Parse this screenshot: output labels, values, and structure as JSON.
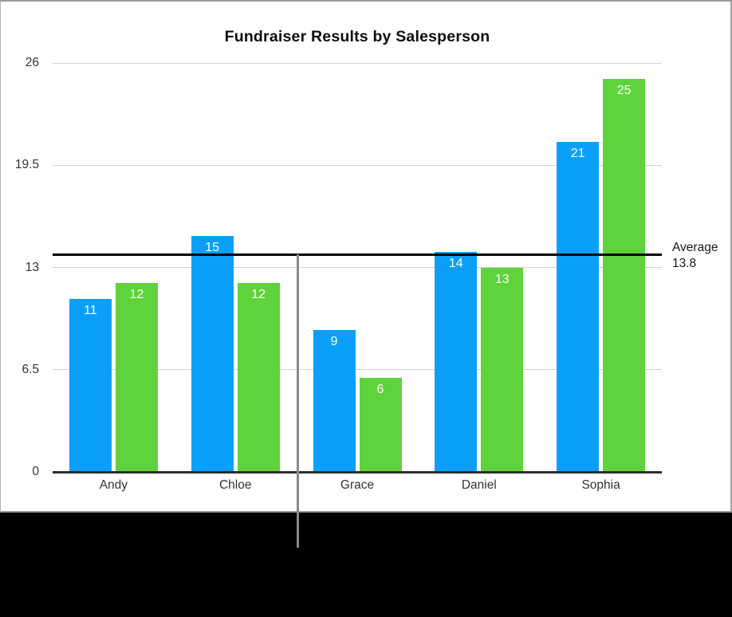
{
  "chart_data": {
    "type": "bar",
    "title": "Fundraiser Results by Salesperson",
    "categories": [
      "Andy",
      "Chloe",
      "Grace",
      "Daniel",
      "Sophia"
    ],
    "series": [
      {
        "key": "blue",
        "color": "#0AA0FA",
        "values": [
          11,
          15,
          9,
          14,
          21
        ]
      },
      {
        "key": "green",
        "color": "#5FD33C",
        "values": [
          12,
          12,
          6,
          13,
          25
        ]
      }
    ],
    "y_tick_labels": [
      "0",
      "6.5",
      "13",
      "19.5",
      "26"
    ],
    "ylim": [
      0,
      26
    ],
    "grid": true,
    "legend_position": "none",
    "bar_value_labels_shown": true,
    "reference_line": {
      "label": "Average",
      "value_text": "13.8",
      "value": 13.8,
      "color": "#000000"
    },
    "indicator_line_color": "#8A8A8A"
  }
}
